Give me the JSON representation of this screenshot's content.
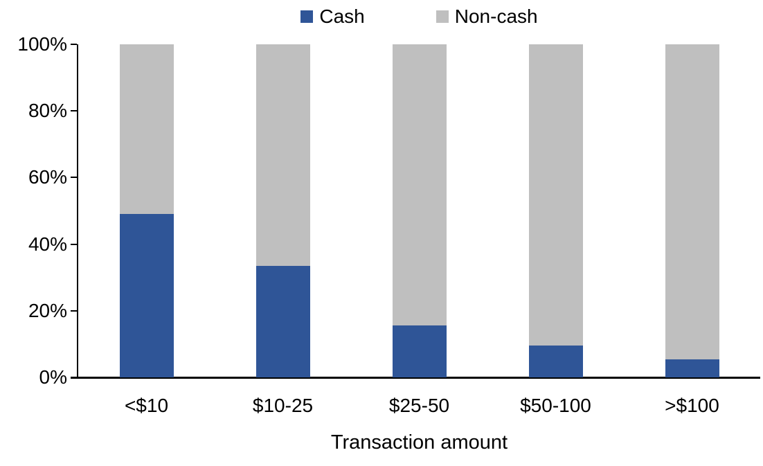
{
  "colors": {
    "cash": "#2F5597",
    "noncash": "#BFBFBF",
    "axis": "#000000",
    "text": "#000000",
    "background": "#FFFFFF"
  },
  "legend": {
    "items": [
      {
        "label": "Cash",
        "color": "#2F5597"
      },
      {
        "label": "Non-cash",
        "color": "#BFBFBF"
      }
    ]
  },
  "chart_data": {
    "type": "bar",
    "variant": "stacked-100-percent",
    "categories": [
      "<$10",
      "$10-25",
      "$25-50",
      "$50-100",
      ">$100"
    ],
    "series": [
      {
        "name": "Cash",
        "color": "#2F5597",
        "values": [
          49,
          33.5,
          15.5,
          9.5,
          5.5
        ]
      },
      {
        "name": "Non-cash",
        "color": "#BFBFBF",
        "values": [
          51,
          66.5,
          84.5,
          90.5,
          94.5
        ]
      }
    ],
    "title": "",
    "xlabel": "Transaction amount",
    "ylabel": "",
    "ylim": [
      0,
      100
    ],
    "yticks": [
      {
        "value": 0,
        "label": "0%"
      },
      {
        "value": 20,
        "label": "20%"
      },
      {
        "value": 40,
        "label": "40%"
      },
      {
        "value": 60,
        "label": "60%"
      },
      {
        "value": 80,
        "label": "80%"
      },
      {
        "value": 100,
        "label": "100%"
      }
    ],
    "grid": false,
    "legend_position": "top-center"
  }
}
